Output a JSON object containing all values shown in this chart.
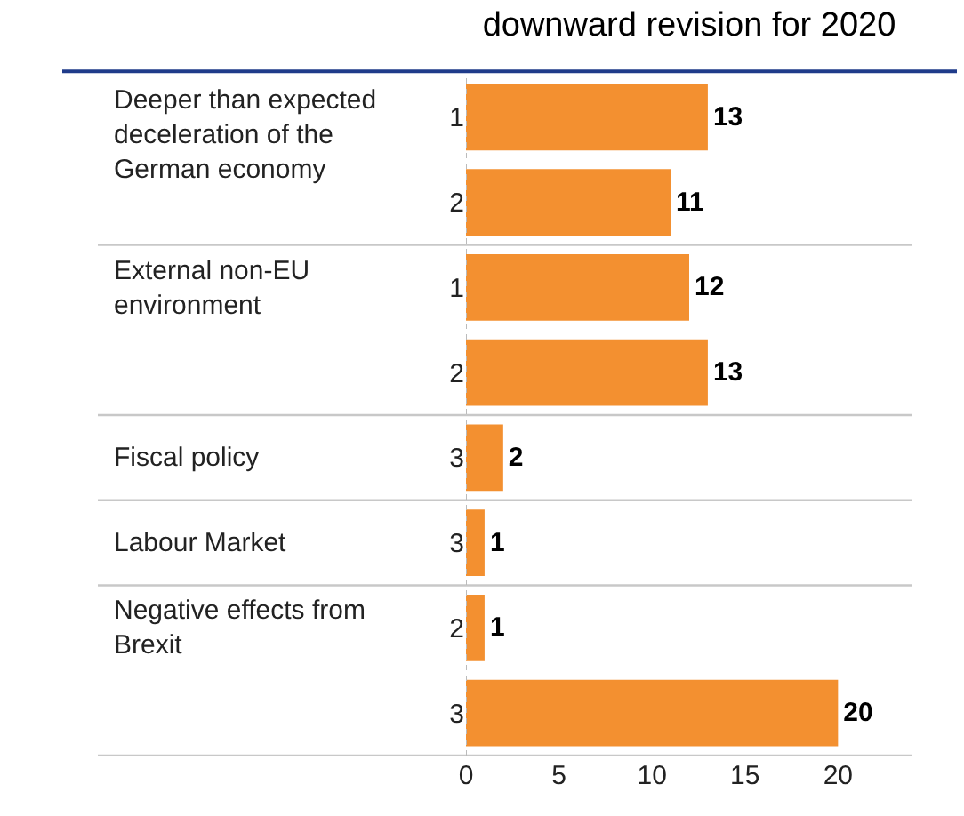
{
  "chart_data": {
    "type": "bar",
    "orientation": "horizontal",
    "title": "downward revision for 2020",
    "categories": [
      "1",
      "2",
      "1",
      "2",
      "3",
      "3",
      "2",
      "3"
    ],
    "values": [
      13,
      11,
      12,
      13,
      2,
      1,
      1,
      20
    ],
    "color": "#f39030",
    "xlim": [
      0,
      24
    ],
    "xticks": [
      0,
      5,
      10,
      15,
      20
    ],
    "data_labels": true,
    "grid": false,
    "annotations": [
      "Deeper than expected deceleration of the German economy",
      "External non-EU environment",
      "Fiscal policy",
      "Labour Market",
      "Negative effects from Brexit"
    ]
  }
}
